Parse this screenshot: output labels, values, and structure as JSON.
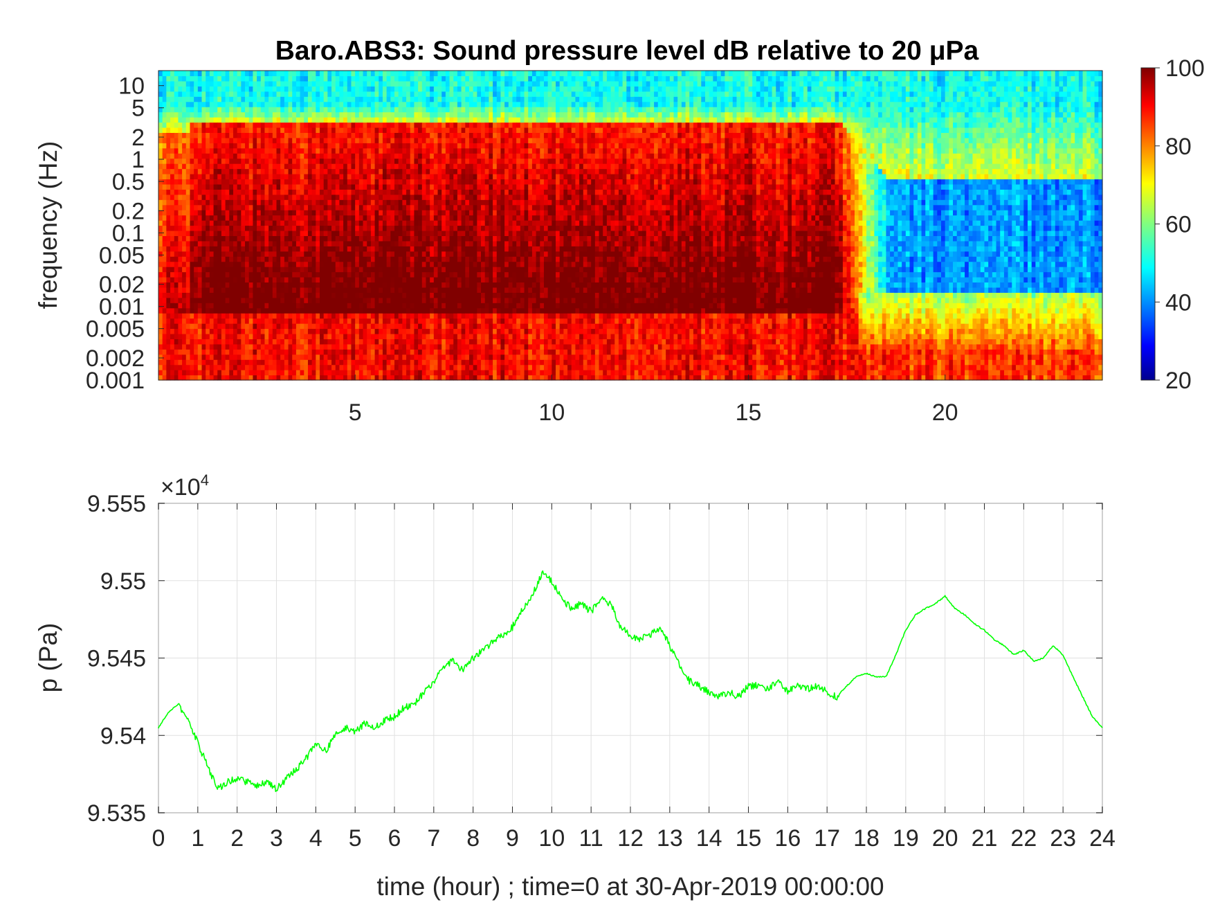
{
  "colors": {
    "line": "#00ff00",
    "axes": "#262626",
    "grid": "#e0e0e0",
    "colormap": "jet"
  },
  "chart_data": [
    {
      "type": "heatmap",
      "title": "Baro.ABS3: Sound pressure level dB relative to 20 μPa",
      "xlabel": "",
      "ylabel": "frequency (Hz)",
      "xlim": [
        0,
        24
      ],
      "x_ticks": [
        "5",
        "10",
        "15",
        "20"
      ],
      "y_scale": "log",
      "ylim": [
        0.001,
        16
      ],
      "y_ticks": [
        "0.001",
        "0.002",
        "0.005",
        "0.01",
        "0.02",
        "0.05",
        "0.1",
        "0.2",
        "0.5",
        "1",
        "2",
        "5",
        "10"
      ],
      "colorbar": {
        "clim": [
          20,
          100
        ],
        "ticks": [
          "20",
          "40",
          "60",
          "80",
          "100"
        ],
        "colormap": "jet",
        "placement": "right"
      },
      "grid": false,
      "description_of_values": {
        "loud_period_hours": [
          0,
          17.5
        ],
        "quiet_period_hours": [
          17.5,
          24
        ],
        "high_freq_level_db": 50,
        "mid_freq_level_loud_db": 88,
        "mid_freq_level_quiet_db": 42,
        "low_freq_level_db": 86
      }
    },
    {
      "type": "line",
      "title": "",
      "xlabel": "time (hour) ; time=0 at 30-Apr-2019 00:00:00",
      "ylabel": "p (Pa)",
      "y_multiplier": "×10^4",
      "xlim": [
        0,
        24
      ],
      "ylim": [
        9.535,
        9.555
      ],
      "x_ticks": [
        "0",
        "1",
        "2",
        "3",
        "4",
        "5",
        "6",
        "7",
        "8",
        "9",
        "10",
        "11",
        "12",
        "13",
        "14",
        "15",
        "16",
        "17",
        "18",
        "19",
        "20",
        "21",
        "22",
        "23",
        "24"
      ],
      "y_ticks": [
        "9.535",
        "9.54",
        "9.545",
        "9.55",
        "9.555"
      ],
      "grid": true,
      "series": [
        {
          "color": "#00ff00",
          "x": [
            0,
            0.25,
            0.5,
            0.75,
            1,
            1.25,
            1.5,
            1.75,
            2,
            2.25,
            2.5,
            2.75,
            3,
            3.25,
            3.5,
            3.75,
            4,
            4.25,
            4.5,
            4.75,
            5,
            5.25,
            5.5,
            5.75,
            6,
            6.25,
            6.5,
            6.75,
            7,
            7.25,
            7.5,
            7.75,
            8,
            8.25,
            8.5,
            8.75,
            9,
            9.25,
            9.5,
            9.75,
            10,
            10.25,
            10.5,
            10.75,
            11,
            11.25,
            11.5,
            11.75,
            12,
            12.25,
            12.5,
            12.75,
            13,
            13.25,
            13.5,
            13.75,
            14,
            14.25,
            14.5,
            14.75,
            15,
            15.25,
            15.5,
            15.75,
            16,
            16.25,
            16.5,
            16.75,
            17,
            17.25,
            17.5,
            17.75,
            18,
            18.25,
            18.5,
            18.75,
            19,
            19.25,
            19.5,
            19.75,
            20,
            20.25,
            20.5,
            20.75,
            21,
            21.25,
            21.5,
            21.75,
            22,
            22.25,
            22.5,
            22.75,
            23,
            23.25,
            23.5,
            23.75,
            24
          ],
          "y": [
            9.5405,
            9.5415,
            9.542,
            9.541,
            9.5395,
            9.538,
            9.5365,
            9.537,
            9.5372,
            9.537,
            9.5368,
            9.537,
            9.5365,
            9.5372,
            9.5378,
            9.5385,
            9.5395,
            9.539,
            9.54,
            9.5405,
            9.5402,
            9.5408,
            9.5405,
            9.541,
            9.5412,
            9.5418,
            9.542,
            9.5428,
            9.5435,
            9.5445,
            9.5448,
            9.5442,
            9.545,
            9.5455,
            9.546,
            9.5465,
            9.547,
            9.5482,
            9.549,
            9.5505,
            9.55,
            9.5488,
            9.5482,
            9.5485,
            9.548,
            9.5488,
            9.5485,
            9.547,
            9.5465,
            9.5462,
            9.5465,
            9.547,
            9.5458,
            9.5445,
            9.5435,
            9.5432,
            9.5428,
            9.5425,
            9.5428,
            9.5425,
            9.5432,
            9.5432,
            9.543,
            9.5435,
            9.5428,
            9.5432,
            9.543,
            9.5432,
            9.5428,
            9.5425,
            9.5432,
            9.5438,
            9.544,
            9.5438,
            9.5438,
            9.5452,
            9.5468,
            9.5478,
            9.5482,
            9.5485,
            9.549,
            9.5482,
            9.5478,
            9.5472,
            9.5468,
            9.5462,
            9.5458,
            9.5452,
            9.5455,
            9.5448,
            9.545,
            9.5458,
            9.5452,
            9.5438,
            9.5425,
            9.5412,
            9.5405
          ]
        }
      ]
    }
  ]
}
